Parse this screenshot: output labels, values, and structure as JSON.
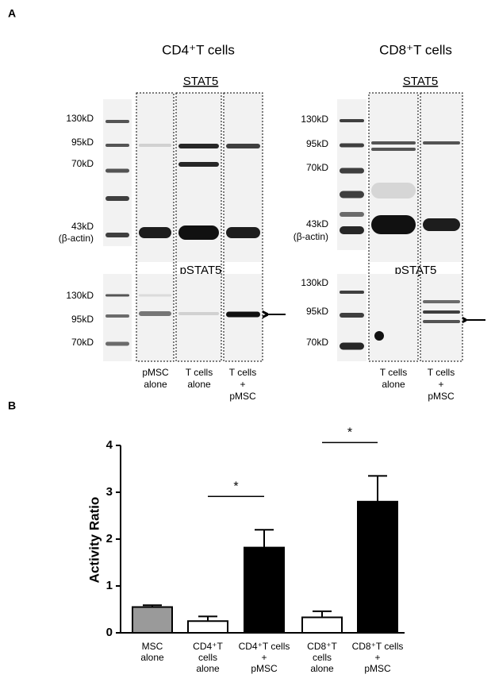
{
  "panel_a": {
    "label": "A",
    "left": {
      "title": "CD4⁺T cells",
      "stat5": "STAT5",
      "pstat5": "pSTAT5",
      "markers_top": [
        "130kD",
        "95kD",
        "70kD",
        "43kD",
        "(β-actin)"
      ],
      "markers_bottom": [
        "130kD",
        "95kD",
        "70kD"
      ],
      "lanes": [
        [
          "pMSC",
          "alone"
        ],
        [
          "T cells",
          "alone"
        ],
        [
          "T cells",
          "+",
          "pMSC"
        ]
      ]
    },
    "right": {
      "title": "CD8⁺T cells",
      "stat5": "STAT5",
      "pstat5": "pSTAT5",
      "markers_top": [
        "130kD",
        "95kD",
        "70kD",
        "43kD",
        "(β-actin)"
      ],
      "markers_bottom": [
        "130kD",
        "95kD",
        "70kD"
      ],
      "lanes": [
        [
          "T cells",
          "alone"
        ],
        [
          "T cells",
          "+",
          "pMSC"
        ]
      ]
    }
  },
  "panel_b_label": "B",
  "chart_data": {
    "type": "bar",
    "y_label": "Activity Ratio",
    "categories": [
      [
        "MSC",
        "alone"
      ],
      [
        "CD4⁺T",
        "cells",
        "alone"
      ],
      [
        "CD4⁺T cells",
        "+",
        "pMSC"
      ],
      [
        "CD8⁺T",
        "cells",
        "alone"
      ],
      [
        "CD8⁺T cells",
        "+",
        "pMSC"
      ]
    ],
    "values": [
      0.55,
      0.25,
      1.82,
      0.33,
      2.8
    ],
    "errors": [
      0.04,
      0.1,
      0.38,
      0.13,
      0.55
    ],
    "colors": [
      "#9a9a9a",
      "#ffffff",
      "#000000",
      "#ffffff",
      "#000000"
    ],
    "ylim": [
      0,
      4
    ],
    "yticks": [
      0,
      1,
      2,
      3,
      4
    ],
    "annotations": [
      "*",
      "*"
    ]
  }
}
